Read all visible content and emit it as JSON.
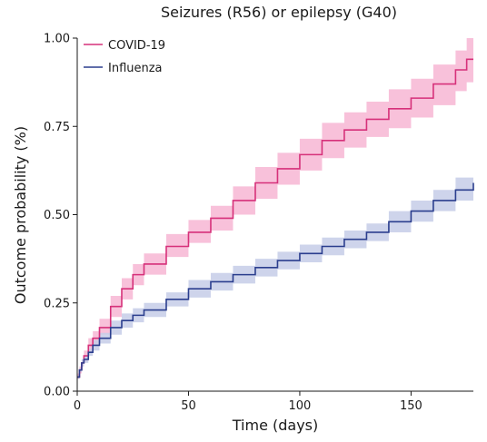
{
  "chart_data": {
    "type": "line",
    "title": "Seizures (R56) or epilepsy (G40)",
    "xlabel": "Time (days)",
    "ylabel": "Outcome probability (%)",
    "xlim": [
      0,
      178
    ],
    "ylim": [
      0,
      1.0
    ],
    "x_ticks": [
      0,
      50,
      100,
      150
    ],
    "x_tick_labels": [
      "0",
      "50",
      "100",
      "150"
    ],
    "y_ticks": [
      0,
      0.25,
      0.5,
      0.75,
      1.0
    ],
    "y_tick_labels": [
      "0.00",
      "0.25",
      "0.50",
      "0.75",
      "1.00"
    ],
    "legend_position": "top-left",
    "grid": false,
    "series": [
      {
        "name": "COVID-19",
        "color": "#d6317a",
        "band_color": "#f7b6d4",
        "x": [
          0,
          1,
          2,
          3,
          5,
          7,
          10,
          15,
          20,
          25,
          30,
          40,
          50,
          60,
          70,
          80,
          90,
          100,
          110,
          120,
          130,
          140,
          150,
          160,
          170,
          175,
          178
        ],
        "y": [
          0.04,
          0.06,
          0.08,
          0.1,
          0.13,
          0.15,
          0.18,
          0.24,
          0.29,
          0.33,
          0.36,
          0.41,
          0.45,
          0.49,
          0.54,
          0.59,
          0.63,
          0.67,
          0.71,
          0.74,
          0.77,
          0.8,
          0.83,
          0.87,
          0.91,
          0.94,
          0.94
        ],
        "lower": [
          0.035,
          0.05,
          0.07,
          0.085,
          0.11,
          0.13,
          0.16,
          0.21,
          0.26,
          0.3,
          0.33,
          0.38,
          0.42,
          0.455,
          0.5,
          0.545,
          0.585,
          0.625,
          0.66,
          0.69,
          0.72,
          0.745,
          0.775,
          0.81,
          0.85,
          0.875,
          0.88
        ],
        "upper": [
          0.05,
          0.07,
          0.09,
          0.115,
          0.15,
          0.17,
          0.205,
          0.27,
          0.32,
          0.36,
          0.39,
          0.445,
          0.485,
          0.525,
          0.58,
          0.635,
          0.675,
          0.715,
          0.76,
          0.79,
          0.82,
          0.855,
          0.885,
          0.925,
          0.965,
          1.0,
          1.0
        ]
      },
      {
        "name": "Influenza",
        "color": "#2b3e8e",
        "band_color": "#c5cde8",
        "x": [
          0,
          1,
          2,
          3,
          5,
          7,
          10,
          15,
          20,
          25,
          30,
          40,
          50,
          60,
          70,
          80,
          90,
          100,
          110,
          120,
          130,
          140,
          150,
          160,
          170,
          178
        ],
        "y": [
          0.04,
          0.06,
          0.08,
          0.09,
          0.11,
          0.13,
          0.15,
          0.18,
          0.2,
          0.215,
          0.23,
          0.26,
          0.29,
          0.31,
          0.33,
          0.35,
          0.37,
          0.39,
          0.41,
          0.43,
          0.45,
          0.48,
          0.51,
          0.54,
          0.57,
          0.59
        ],
        "lower": [
          0.035,
          0.055,
          0.07,
          0.08,
          0.1,
          0.115,
          0.135,
          0.16,
          0.18,
          0.195,
          0.21,
          0.24,
          0.265,
          0.285,
          0.305,
          0.325,
          0.345,
          0.365,
          0.385,
          0.405,
          0.425,
          0.45,
          0.48,
          0.51,
          0.54,
          0.555
        ],
        "upper": [
          0.045,
          0.065,
          0.09,
          0.1,
          0.12,
          0.145,
          0.165,
          0.2,
          0.22,
          0.235,
          0.25,
          0.28,
          0.315,
          0.335,
          0.355,
          0.375,
          0.395,
          0.415,
          0.435,
          0.455,
          0.475,
          0.51,
          0.54,
          0.57,
          0.605,
          0.63
        ]
      }
    ]
  }
}
